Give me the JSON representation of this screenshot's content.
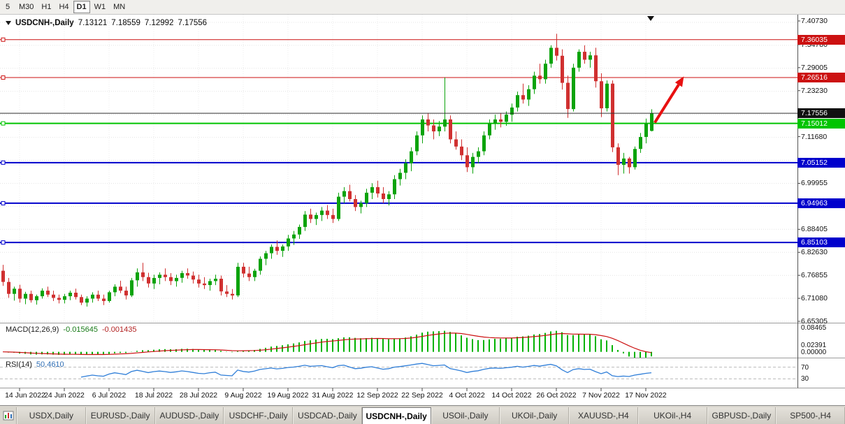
{
  "toolbar": {
    "timeframes": [
      {
        "label": "5",
        "active": false
      },
      {
        "label": "M30",
        "active": false
      },
      {
        "label": "H1",
        "active": false
      },
      {
        "label": "H4",
        "active": false
      },
      {
        "label": "D1",
        "active": true
      },
      {
        "label": "W1",
        "active": false
      },
      {
        "label": "MN",
        "active": false
      }
    ]
  },
  "header": {
    "symbol": "USDCNH-,Daily",
    "open": "7.13121",
    "high": "7.18559",
    "low": "7.12992",
    "close": "7.17556"
  },
  "chart_data": {
    "type": "candlestick",
    "title": "USDCNH-,Daily",
    "symbol": "USDCNH",
    "timeframe": "Daily",
    "current_bar": {
      "open": 7.13121,
      "high": 7.18559,
      "low": 7.12992,
      "close": 7.17556
    },
    "bid_price": 7.17556,
    "bid_label": "7.17556",
    "y_axis": {
      "ticks": [
        {
          "label": "7.40730",
          "value": 7.4073
        },
        {
          "label": "7.34780",
          "value": 7.3478
        },
        {
          "label": "7.29005",
          "value": 7.29005
        },
        {
          "label": "7.23230",
          "value": 7.2323
        },
        {
          "label": "7.11680",
          "value": 7.1168
        },
        {
          "label": "6.99955",
          "value": 6.99955
        },
        {
          "label": "6.88405",
          "value": 6.88405
        },
        {
          "label": "6.82630",
          "value": 6.8263
        },
        {
          "label": "6.76855",
          "value": 6.76855
        },
        {
          "label": "6.71080",
          "value": 6.7108
        },
        {
          "label": "6.65305",
          "value": 6.65305
        }
      ]
    },
    "x_ticks": [
      {
        "index": 3,
        "label": "14 Jun 2022"
      },
      {
        "index": 11,
        "label": "24 Jun 2022"
      },
      {
        "index": 19,
        "label": "6 Jul 2022"
      },
      {
        "index": 27,
        "label": "18 Jul 2022"
      },
      {
        "index": 35,
        "label": "28 Jul 2022"
      },
      {
        "index": 43,
        "label": "9 Aug 2022"
      },
      {
        "index": 51,
        "label": "19 Aug 2022"
      },
      {
        "index": 59,
        "label": "31 Aug 2022"
      },
      {
        "index": 67,
        "label": "12 Sep 2022"
      },
      {
        "index": 75,
        "label": "22 Sep 2022"
      },
      {
        "index": 83,
        "label": "4 Oct 2022"
      },
      {
        "index": 91,
        "label": "14 Oct 2022"
      },
      {
        "index": 99,
        "label": "26 Oct 2022"
      },
      {
        "index": 107,
        "label": "7 Nov 2022"
      },
      {
        "index": 115,
        "label": "17 Nov 2022"
      }
    ],
    "levels": [
      {
        "label": "7.36035",
        "price": 7.36035,
        "color": "#cc1111",
        "width": 1,
        "type": "resistance"
      },
      {
        "label": "7.26516",
        "price": 7.26516,
        "color": "#cc1111",
        "width": 1,
        "type": "resistance"
      },
      {
        "label": "7.15012",
        "price": 7.15012,
        "color": "#00c400",
        "width": 2,
        "type": "support"
      },
      {
        "label": "7.05152",
        "price": 7.05152,
        "color": "#0000cc",
        "width": 2,
        "type": "support"
      },
      {
        "label": "6.94963",
        "price": 6.94963,
        "color": "#0000cc",
        "width": 2,
        "type": "support"
      },
      {
        "label": "6.85103",
        "price": 6.85103,
        "color": "#0000cc",
        "width": 2,
        "type": "support"
      }
    ],
    "arrow": {
      "from_index": 116.6,
      "from_price": 7.152,
      "to_index": 121.8,
      "to_price": 7.268,
      "color": "#e81010"
    },
    "candles": [
      [
        6.78,
        6.795,
        6.742,
        6.752
      ],
      [
        6.752,
        6.762,
        6.712,
        6.722
      ],
      [
        6.722,
        6.74,
        6.705,
        6.735
      ],
      [
        6.735,
        6.745,
        6.7,
        6.71
      ],
      [
        6.71,
        6.727,
        6.696,
        6.722
      ],
      [
        6.722,
        6.73,
        6.7,
        6.706
      ],
      [
        6.706,
        6.72,
        6.695,
        6.716
      ],
      [
        6.716,
        6.736,
        6.71,
        6.73
      ],
      [
        6.73,
        6.74,
        6.714,
        6.72
      ],
      [
        6.72,
        6.73,
        6.704,
        6.712
      ],
      [
        6.712,
        6.72,
        6.698,
        6.707
      ],
      [
        6.707,
        6.722,
        6.698,
        6.716
      ],
      [
        6.716,
        6.73,
        6.706,
        6.725
      ],
      [
        6.725,
        6.735,
        6.708,
        6.714
      ],
      [
        6.714,
        6.72,
        6.694,
        6.7
      ],
      [
        6.7,
        6.716,
        6.69,
        6.71
      ],
      [
        6.71,
        6.726,
        6.7,
        6.72
      ],
      [
        6.72,
        6.73,
        6.704,
        6.71
      ],
      [
        6.71,
        6.72,
        6.694,
        6.704
      ],
      [
        6.704,
        6.73,
        6.7,
        6.726
      ],
      [
        6.726,
        6.746,
        6.716,
        6.74
      ],
      [
        6.74,
        6.755,
        6.724,
        6.73
      ],
      [
        6.73,
        6.74,
        6.708,
        6.718
      ],
      [
        6.718,
        6.762,
        6.714,
        6.756
      ],
      [
        6.756,
        6.786,
        6.74,
        6.776
      ],
      [
        6.776,
        6.8,
        6.754,
        6.764
      ],
      [
        6.764,
        6.775,
        6.738,
        6.748
      ],
      [
        6.748,
        6.77,
        6.734,
        6.762
      ],
      [
        6.762,
        6.776,
        6.746,
        6.77
      ],
      [
        6.77,
        6.786,
        6.754,
        6.764
      ],
      [
        6.764,
        6.774,
        6.744,
        6.754
      ],
      [
        6.754,
        6.77,
        6.74,
        6.762
      ],
      [
        6.762,
        6.78,
        6.75,
        6.774
      ],
      [
        6.774,
        6.786,
        6.76,
        6.768
      ],
      [
        6.768,
        6.778,
        6.748,
        6.758
      ],
      [
        6.758,
        6.77,
        6.738,
        6.748
      ],
      [
        6.748,
        6.764,
        6.734,
        6.744
      ],
      [
        6.744,
        6.76,
        6.73,
        6.754
      ],
      [
        6.754,
        6.77,
        6.744,
        6.76
      ],
      [
        6.76,
        6.768,
        6.718,
        6.728
      ],
      [
        6.728,
        6.744,
        6.714,
        6.722
      ],
      [
        6.722,
        6.734,
        6.708,
        6.718
      ],
      [
        6.718,
        6.8,
        6.714,
        6.79
      ],
      [
        6.79,
        6.8,
        6.763,
        6.773
      ],
      [
        6.773,
        6.79,
        6.754,
        6.764
      ],
      [
        6.764,
        6.785,
        6.754,
        6.78
      ],
      [
        6.78,
        6.816,
        6.77,
        6.81
      ],
      [
        6.81,
        6.83,
        6.794,
        6.824
      ],
      [
        6.824,
        6.846,
        6.81,
        6.84
      ],
      [
        6.84,
        6.856,
        6.82,
        6.83
      ],
      [
        6.83,
        6.846,
        6.815,
        6.841
      ],
      [
        6.841,
        6.87,
        6.83,
        6.861
      ],
      [
        6.861,
        6.88,
        6.845,
        6.871
      ],
      [
        6.871,
        6.896,
        6.86,
        6.89
      ],
      [
        6.89,
        6.93,
        6.88,
        6.921
      ],
      [
        6.921,
        6.936,
        6.9,
        6.91
      ],
      [
        6.91,
        6.926,
        6.895,
        6.92
      ],
      [
        6.92,
        6.94,
        6.905,
        6.931
      ],
      [
        6.931,
        6.945,
        6.91,
        6.92
      ],
      [
        6.92,
        6.936,
        6.9,
        6.91
      ],
      [
        6.91,
        6.976,
        6.905,
        6.966
      ],
      [
        6.966,
        6.99,
        6.95,
        6.98
      ],
      [
        6.98,
        6.996,
        6.954,
        6.96
      ],
      [
        6.96,
        6.97,
        6.93,
        6.94
      ],
      [
        6.94,
        6.956,
        6.924,
        6.95
      ],
      [
        6.95,
        6.986,
        6.94,
        6.976
      ],
      [
        6.976,
        7.0,
        6.96,
        6.99
      ],
      [
        6.99,
        7.006,
        6.964,
        6.974
      ],
      [
        6.974,
        6.99,
        6.95,
        6.96
      ],
      [
        6.96,
        6.98,
        6.944,
        6.972
      ],
      [
        6.972,
        7.02,
        6.96,
        7.01
      ],
      [
        7.01,
        7.036,
        6.994,
        7.026
      ],
      [
        7.026,
        7.06,
        7.01,
        7.05
      ],
      [
        7.05,
        7.09,
        7.03,
        7.08
      ],
      [
        7.08,
        7.13,
        7.07,
        7.12
      ],
      [
        7.12,
        7.17,
        7.1,
        7.16
      ],
      [
        7.16,
        7.176,
        7.13,
        7.145
      ],
      [
        7.145,
        7.16,
        7.11,
        7.13
      ],
      [
        7.13,
        7.156,
        7.118,
        7.142
      ],
      [
        7.142,
        7.265,
        7.13,
        7.16
      ],
      [
        7.16,
        7.17,
        7.1,
        7.11
      ],
      [
        7.11,
        7.13,
        7.084,
        7.092
      ],
      [
        7.092,
        7.11,
        7.058,
        7.07
      ],
      [
        7.07,
        7.09,
        7.028,
        7.04
      ],
      [
        7.04,
        7.076,
        7.024,
        7.066
      ],
      [
        7.066,
        7.09,
        7.05,
        7.08
      ],
      [
        7.08,
        7.13,
        7.07,
        7.12
      ],
      [
        7.12,
        7.16,
        7.11,
        7.15
      ],
      [
        7.15,
        7.172,
        7.134,
        7.16
      ],
      [
        7.16,
        7.176,
        7.14,
        7.154
      ],
      [
        7.154,
        7.18,
        7.144,
        7.172
      ],
      [
        7.172,
        7.2,
        7.154,
        7.19
      ],
      [
        7.19,
        7.23,
        7.18,
        7.221
      ],
      [
        7.221,
        7.25,
        7.2,
        7.21
      ],
      [
        7.21,
        7.246,
        7.194,
        7.236
      ],
      [
        7.236,
        7.28,
        7.224,
        7.27
      ],
      [
        7.27,
        7.3,
        7.25,
        7.261
      ],
      [
        7.261,
        7.31,
        7.25,
        7.3
      ],
      [
        7.3,
        7.346,
        7.29,
        7.34
      ],
      [
        7.34,
        7.375,
        7.308,
        7.32
      ],
      [
        7.32,
        7.336,
        7.235,
        7.252
      ],
      [
        7.252,
        7.27,
        7.164,
        7.186
      ],
      [
        7.186,
        7.3,
        7.18,
        7.29
      ],
      [
        7.29,
        7.336,
        7.28,
        7.33
      ],
      [
        7.33,
        7.346,
        7.3,
        7.31
      ],
      [
        7.31,
        7.33,
        7.29,
        7.321
      ],
      [
        7.321,
        7.34,
        7.24,
        7.256
      ],
      [
        7.256,
        7.276,
        7.166,
        7.188
      ],
      [
        7.188,
        7.258,
        7.18,
        7.25
      ],
      [
        7.25,
        7.258,
        7.078,
        7.09
      ],
      [
        7.09,
        7.1,
        7.02,
        7.046
      ],
      [
        7.046,
        7.076,
        7.024,
        7.062
      ],
      [
        7.062,
        7.066,
        7.024,
        7.04
      ],
      [
        7.04,
        7.092,
        7.034,
        7.086
      ],
      [
        7.086,
        7.126,
        7.076,
        7.116
      ],
      [
        7.116,
        7.162,
        7.1,
        7.15
      ],
      [
        7.13121,
        7.18559,
        7.12992,
        7.17556
      ]
    ],
    "indicators": {
      "macd": {
        "label": "MACD(12,26,9)",
        "main_value": "-0.015645",
        "signal_value": "-0.001435",
        "params": [
          12,
          26,
          9
        ],
        "scale_min": -0.02,
        "scale_max": 0.098,
        "axis_ticks": [
          {
            "label": "0.08465",
            "value": 0.08465
          },
          {
            "label": "0.02391",
            "value": 0.02391
          },
          {
            "label": "0.00000",
            "value": 0
          }
        ]
      },
      "rsi": {
        "label": "RSI(14)",
        "value": "50.4610",
        "period": 14,
        "levels": [
          {
            "label": "70",
            "value": 70
          },
          {
            "label": "30",
            "value": 30
          }
        ]
      }
    }
  },
  "bottom_tabs": {
    "tabs": [
      {
        "label": "USDX,Daily",
        "active": false
      },
      {
        "label": "EURUSD-,Daily",
        "active": false
      },
      {
        "label": "AUDUSD-,Daily",
        "active": false
      },
      {
        "label": "USDCHF-,Daily",
        "active": false
      },
      {
        "label": "USDCAD-,Daily",
        "active": false
      },
      {
        "label": "USDCNH-,Daily",
        "active": true
      },
      {
        "label": "USOil-,Daily",
        "active": false
      },
      {
        "label": "UKOil-,Daily",
        "active": false
      },
      {
        "label": "XAUUSD-,H4",
        "active": false
      },
      {
        "label": "UKOil-,H4",
        "active": false
      },
      {
        "label": "GBPUSD-,Daily",
        "active": false
      },
      {
        "label": "SP500-,H4",
        "active": false
      }
    ]
  },
  "colors": {
    "candle_up": "#0ca30c",
    "candle_down": "#d03030",
    "macd_histogram": "#00b300",
    "macd_signal": "#cc1111",
    "rsi_line": "#2f7ed8",
    "bid_line": "#333333",
    "arrow": "#e81010",
    "current_price_box": "#111111"
  }
}
